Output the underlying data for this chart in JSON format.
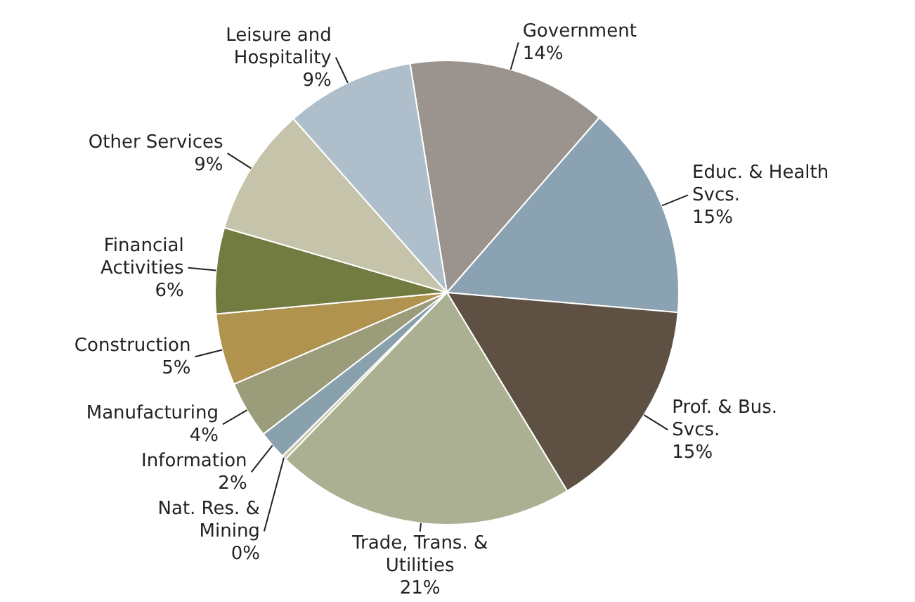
{
  "chart_data": {
    "type": "pie",
    "categories": [
      "Government",
      "Educ. & Health\nSvcs.",
      "Prof. & Bus.\nSvcs.",
      "Trade, Trans. &\nUtilities",
      "Nat. Res. &\nMining",
      "Information",
      "Manufacturing",
      "Construction",
      "Financial\nActivities",
      "Other Services",
      "Leisure and\nHospitality"
    ],
    "values": [
      14,
      15,
      15,
      21,
      0.3,
      2,
      4,
      5,
      6,
      9,
      9
    ],
    "value_labels": [
      "14%",
      "15%",
      "15%",
      "21%",
      "0%",
      "2%",
      "4%",
      "5%",
      "6%",
      "9%",
      "9%"
    ],
    "colors": [
      "#9b948e",
      "#8aa2b2",
      "#5e5042",
      "#aab091",
      "#c9caae",
      "#89a0ad",
      "#9a9c7a",
      "#b0934f",
      "#727b40",
      "#c5c3a9",
      "#aebfcb"
    ]
  }
}
